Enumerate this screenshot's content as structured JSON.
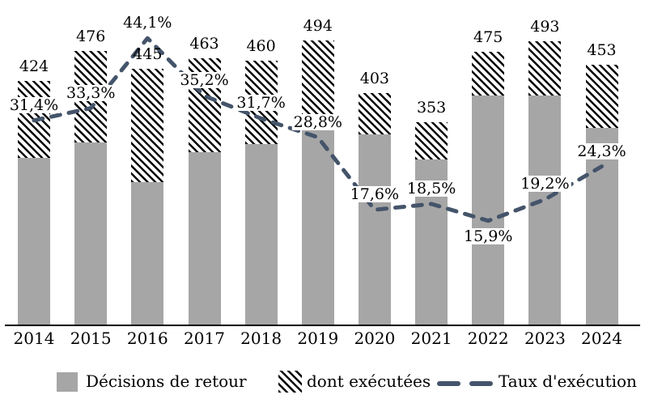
{
  "chart_data": {
    "type": "bar",
    "subtype": "stacked-bar-with-dashed-line-overlay",
    "title": "",
    "categories": [
      "2014",
      "2015",
      "2016",
      "2017",
      "2018",
      "2019",
      "2020",
      "2021",
      "2022",
      "2023",
      "2024"
    ],
    "series": [
      {
        "name": "Décisions de retour",
        "type": "bar",
        "role": "total bar height (return decisions)",
        "color": "#A6A6A6",
        "values": [
          424,
          476,
          445,
          463,
          460,
          494,
          403,
          353,
          475,
          493,
          453
        ]
      },
      {
        "name": "dont exécutées",
        "type": "bar-top-segment",
        "role": "hatched top segment = executed share of total",
        "pattern": "black diagonal hatch on white",
        "share_of_total_pct": [
          31.4,
          33.3,
          44.1,
          35.2,
          31.7,
          28.8,
          17.6,
          18.5,
          15.9,
          19.2,
          24.3
        ]
      },
      {
        "name": "Taux d'exécution",
        "type": "line",
        "style": "dashed",
        "color": "#44546A",
        "values_pct": [
          31.4,
          33.3,
          44.1,
          35.2,
          31.7,
          28.8,
          17.6,
          18.5,
          15.9,
          19.2,
          24.3
        ],
        "labels": [
          "31,4%",
          "33,3%",
          "44,1%",
          "35,2%",
          "31,7%",
          "28,8%",
          "17,6%",
          "18,5%",
          "15,9%",
          "19,2%",
          "24,3%"
        ],
        "label_side": [
          "above",
          "above",
          "above",
          "above",
          "above",
          "above",
          "above",
          "above",
          "below",
          "above",
          "above"
        ]
      }
    ],
    "bar_total_labels": [
      "424",
      "476",
      "445",
      "463",
      "460",
      "494",
      "403",
      "353",
      "475",
      "493",
      "453"
    ],
    "x_axis": {
      "line_visible": true,
      "tick_labels_visible": true
    },
    "y_axis": {
      "visible": false,
      "implied_value_range": [
        0,
        560
      ]
    },
    "secondary_axis": {
      "visible": false,
      "implied_pct_range": [
        0,
        50
      ]
    },
    "grid": false,
    "legend": {
      "position": "bottom",
      "entries": [
        "Décisions de retour",
        "dont exécutées",
        "Taux d'exécution"
      ]
    }
  },
  "colors": {
    "bar_gray": "#A6A6A6",
    "line_dash": "#44546A",
    "hatch": "#000000",
    "axis": "#000000",
    "background": "#FFFFFF",
    "text": "#000000"
  }
}
